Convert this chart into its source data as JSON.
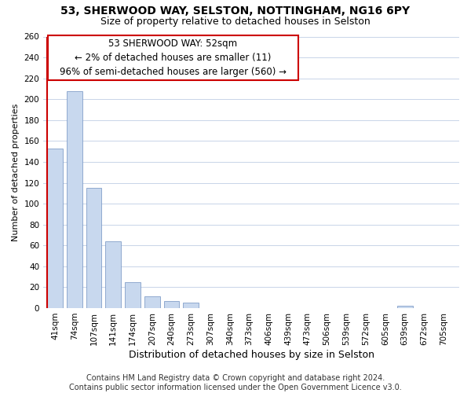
{
  "title": "53, SHERWOOD WAY, SELSTON, NOTTINGHAM, NG16 6PY",
  "subtitle": "Size of property relative to detached houses in Selston",
  "xlabel": "Distribution of detached houses by size in Selston",
  "ylabel": "Number of detached properties",
  "bar_labels": [
    "41sqm",
    "74sqm",
    "107sqm",
    "141sqm",
    "174sqm",
    "207sqm",
    "240sqm",
    "273sqm",
    "307sqm",
    "340sqm",
    "373sqm",
    "406sqm",
    "439sqm",
    "473sqm",
    "506sqm",
    "539sqm",
    "572sqm",
    "605sqm",
    "639sqm",
    "672sqm",
    "705sqm"
  ],
  "bar_values": [
    153,
    208,
    115,
    64,
    25,
    11,
    7,
    5,
    0,
    0,
    0,
    0,
    0,
    0,
    0,
    0,
    0,
    0,
    2,
    0,
    0
  ],
  "bar_face_color": "#c8d8ee",
  "bar_edge_color": "#7090c0",
  "bar_linewidth": 0.5,
  "highlight_color": "#cc0000",
  "annotation_line1": "53 SHERWOOD WAY: 52sqm",
  "annotation_line2": "← 2% of detached houses are smaller (11)",
  "annotation_line3": "96% of semi-detached houses are larger (560) →",
  "ylim": [
    0,
    260
  ],
  "yticks": [
    0,
    20,
    40,
    60,
    80,
    100,
    120,
    140,
    160,
    180,
    200,
    220,
    240,
    260
  ],
  "footer_text": "Contains HM Land Registry data © Crown copyright and database right 2024.\nContains public sector information licensed under the Open Government Licence v3.0.",
  "bg_color": "#ffffff",
  "grid_color": "#c8d4e8",
  "title_fontsize": 10,
  "subtitle_fontsize": 9,
  "xlabel_fontsize": 9,
  "ylabel_fontsize": 8,
  "tick_fontsize": 7.5,
  "annotation_fontsize": 8.5,
  "footer_fontsize": 7
}
